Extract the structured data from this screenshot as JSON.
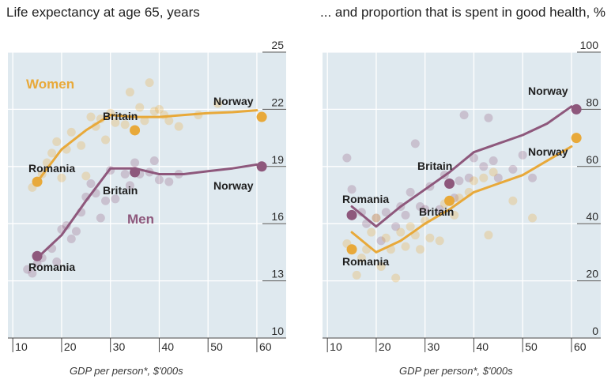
{
  "chart_data": [
    {
      "type": "scatter",
      "title": "Life expectancy at age 65, years",
      "xlabel": "GDP per person*, $'000s",
      "ylabel": "",
      "xlim": [
        9,
        66
      ],
      "ylim": [
        10,
        25
      ],
      "xticks": [
        "10",
        "20",
        "30",
        "40",
        "50",
        "60"
      ],
      "yticks": [
        "10",
        "13",
        "16",
        "19",
        "22",
        "25"
      ],
      "grid": true,
      "series": [
        {
          "name": "Women",
          "color": "#E8A93A",
          "points": [
            [
              14,
              17.9
            ],
            [
              15,
              18.2
            ],
            [
              16,
              18.6
            ],
            [
              17,
              19.2
            ],
            [
              18,
              19.7
            ],
            [
              19,
              20.3
            ],
            [
              20,
              18.4
            ],
            [
              21,
              19.9
            ],
            [
              22,
              20.8
            ],
            [
              24,
              20.1
            ],
            [
              25,
              18.5
            ],
            [
              26,
              21.6
            ],
            [
              27,
              21.1
            ],
            [
              28,
              21.5
            ],
            [
              29,
              20.4
            ],
            [
              30,
              21.8
            ],
            [
              31,
              21.3
            ],
            [
              33,
              21.2
            ],
            [
              34,
              22.9
            ],
            [
              36,
              22.1
            ],
            [
              37,
              21.4
            ],
            [
              38,
              23.4
            ],
            [
              39,
              21.9
            ],
            [
              40,
              22.0
            ],
            [
              41,
              21.7
            ],
            [
              42,
              21.4
            ],
            [
              44,
              21.1
            ],
            [
              48,
              21.7
            ],
            [
              52,
              22.3
            ]
          ],
          "trend": [
            [
              15,
              18.2
            ],
            [
              20,
              19.9
            ],
            [
              25,
              20.9
            ],
            [
              30,
              21.7
            ],
            [
              35,
              21.6
            ],
            [
              40,
              21.6
            ],
            [
              45,
              21.7
            ],
            [
              50,
              21.8
            ],
            [
              55,
              21.85
            ],
            [
              60,
              21.95
            ]
          ],
          "highlights": [
            {
              "label": "Romania",
              "x": 15,
              "y": 18.2
            },
            {
              "label": "Britain",
              "x": 35,
              "y": 20.9
            },
            {
              "label": "Norway",
              "x": 61,
              "y": 21.6
            }
          ]
        },
        {
          "name": "Men",
          "color": "#8E587C",
          "points": [
            [
              13,
              13.6
            ],
            [
              14,
              13.4
            ],
            [
              15,
              13.9
            ],
            [
              16,
              14.2
            ],
            [
              18,
              14.7
            ],
            [
              19,
              14.0
            ],
            [
              20,
              15.7
            ],
            [
              21,
              15.9
            ],
            [
              22,
              15.2
            ],
            [
              23,
              15.6
            ],
            [
              24,
              16.6
            ],
            [
              25,
              17.4
            ],
            [
              26,
              18.1
            ],
            [
              27,
              17.6
            ],
            [
              28,
              16.3
            ],
            [
              29,
              17.2
            ],
            [
              30,
              18.8
            ],
            [
              31,
              17.3
            ],
            [
              33,
              18.6
            ],
            [
              34,
              18.0
            ],
            [
              35,
              19.2
            ],
            [
              36,
              18.6
            ],
            [
              38,
              18.7
            ],
            [
              39,
              19.3
            ],
            [
              40,
              18.3
            ],
            [
              42,
              18.2
            ],
            [
              44,
              18.6
            ]
          ],
          "trend": [
            [
              15,
              14.2
            ],
            [
              20,
              15.4
            ],
            [
              25,
              17.2
            ],
            [
              30,
              18.9
            ],
            [
              35,
              18.9
            ],
            [
              40,
              18.6
            ],
            [
              45,
              18.6
            ],
            [
              50,
              18.75
            ],
            [
              55,
              18.9
            ],
            [
              60,
              19.1
            ]
          ],
          "highlights": [
            {
              "label": "Romania",
              "x": 15,
              "y": 14.3
            },
            {
              "label": "Britain",
              "x": 35,
              "y": 18.7
            },
            {
              "label": "Norway",
              "x": 61,
              "y": 19.0
            }
          ]
        }
      ]
    },
    {
      "type": "scatter",
      "title": "... and proportion that is spent in good health, %",
      "xlabel": "GDP per person*, $'000s",
      "ylabel": "",
      "xlim": [
        9,
        66
      ],
      "ylim": [
        0,
        100
      ],
      "xticks": [
        "10",
        "20",
        "30",
        "40",
        "50",
        "60"
      ],
      "yticks": [
        "0",
        "20",
        "40",
        "60",
        "80",
        "100"
      ],
      "grid": true,
      "series": [
        {
          "name": "Women",
          "color": "#E8A93A",
          "points": [
            [
              14,
              33
            ],
            [
              16,
              22
            ],
            [
              17,
              28
            ],
            [
              18,
              31
            ],
            [
              19,
              37
            ],
            [
              20,
              42
            ],
            [
              21,
              25
            ],
            [
              22,
              35
            ],
            [
              23,
              31
            ],
            [
              24,
              21
            ],
            [
              25,
              37
            ],
            [
              26,
              32
            ],
            [
              27,
              39
            ],
            [
              28,
              36
            ],
            [
              29,
              31
            ],
            [
              30,
              41
            ],
            [
              31,
              35
            ],
            [
              33,
              34
            ],
            [
              34,
              47
            ],
            [
              36,
              43
            ],
            [
              37,
              49
            ],
            [
              39,
              51
            ],
            [
              40,
              55
            ],
            [
              42,
              56
            ],
            [
              43,
              36
            ],
            [
              44,
              58
            ],
            [
              48,
              48
            ],
            [
              52,
              42
            ]
          ],
          "trend": [
            [
              15,
              37
            ],
            [
              20,
              30
            ],
            [
              25,
              34
            ],
            [
              30,
              40
            ],
            [
              35,
              45
            ],
            [
              40,
              51
            ],
            [
              45,
              54
            ],
            [
              50,
              57
            ],
            [
              55,
              62
            ],
            [
              60,
              67
            ]
          ],
          "highlights": [
            {
              "label": "Romania",
              "x": 15,
              "y": 31
            },
            {
              "label": "Britain",
              "x": 35,
              "y": 48
            },
            {
              "label": "Norway",
              "x": 61,
              "y": 70
            }
          ]
        },
        {
          "name": "Men",
          "color": "#8E587C",
          "points": [
            [
              14,
              63
            ],
            [
              15,
              52
            ],
            [
              17,
              44
            ],
            [
              18,
              40
            ],
            [
              20,
              42
            ],
            [
              21,
              34
            ],
            [
              22,
              44
            ],
            [
              24,
              39
            ],
            [
              25,
              46
            ],
            [
              26,
              43
            ],
            [
              27,
              51
            ],
            [
              28,
              68
            ],
            [
              29,
              46
            ],
            [
              30,
              45
            ],
            [
              31,
              53
            ],
            [
              33,
              45
            ],
            [
              34,
              57
            ],
            [
              36,
              49
            ],
            [
              37,
              55
            ],
            [
              38,
              78
            ],
            [
              39,
              56
            ],
            [
              40,
              63
            ],
            [
              42,
              60
            ],
            [
              43,
              77
            ],
            [
              44,
              62
            ],
            [
              45,
              56
            ],
            [
              48,
              59
            ],
            [
              50,
              64
            ],
            [
              52,
              56
            ]
          ],
          "trend": [
            [
              15,
              46
            ],
            [
              20,
              39
            ],
            [
              25,
              46
            ],
            [
              30,
              52
            ],
            [
              35,
              58
            ],
            [
              40,
              65
            ],
            [
              45,
              68
            ],
            [
              50,
              71
            ],
            [
              55,
              75
            ],
            [
              60,
              81
            ]
          ],
          "highlights": [
            {
              "label": "Romania",
              "x": 15,
              "y": 43
            },
            {
              "label": "Britain",
              "x": 35,
              "y": 54
            },
            {
              "label": "Norway",
              "x": 61,
              "y": 80
            }
          ]
        }
      ]
    }
  ]
}
